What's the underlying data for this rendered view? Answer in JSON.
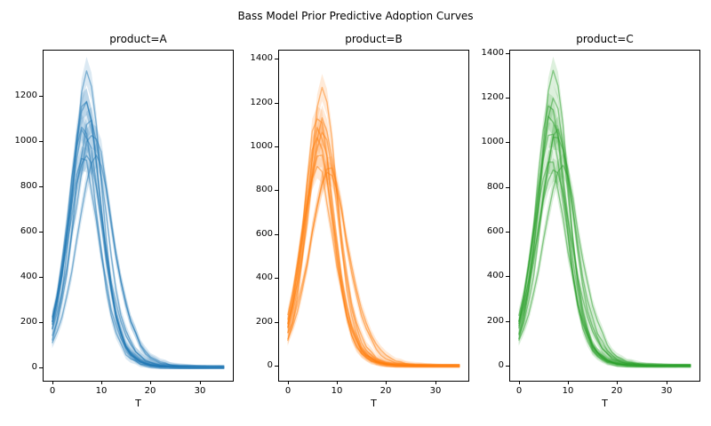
{
  "figure": {
    "title": "Bass Model Prior Predictive Adoption Curves",
    "background": "#ffffff"
  },
  "chart_data": {
    "type": "line",
    "title": "Bass Model Prior Predictive Adoption Curves",
    "description": "Three faceted panels of prior predictive Bass-diffusion adoption-rate curves (10 draws per product), each draw shown as a noisy mean line with a translucent uncertainty band.",
    "model": "bass_adoption: n(t) = m*(p+q)^2/p * exp(-(p+q)t) / (1 + (q/p)exp(-(p+q)t))^2",
    "n_draws_per_panel": 10,
    "grid": false,
    "legend": false,
    "x": {
      "label": "T",
      "ticks": [
        0,
        10,
        20,
        30
      ],
      "range": [
        -1.75,
        36.75
      ],
      "t_start": 0,
      "t_end": 35,
      "t_step": 1
    },
    "style": {
      "line_alpha": 0.5,
      "band_alpha": 0.16,
      "line_width": 1.4,
      "band_k0": 8,
      "band_k1": 1.5,
      "noise": 1.1
    },
    "panels": [
      {
        "title": "product=A",
        "color": "#1f77b4",
        "y_ticks": [
          0,
          200,
          400,
          600,
          800,
          1000,
          1200
        ],
        "y_range": [
          -60,
          1398
        ],
        "draws": [
          {
            "m": 10000,
            "p": 0.013,
            "q": 0.5
          },
          {
            "m": 9000,
            "p": 0.022,
            "q": 0.42
          },
          {
            "m": 8500,
            "p": 0.025,
            "q": 0.45
          },
          {
            "m": 9500,
            "p": 0.018,
            "q": 0.46
          },
          {
            "m": 8000,
            "p": 0.028,
            "q": 0.4
          },
          {
            "m": 9200,
            "p": 0.012,
            "q": 0.38
          },
          {
            "m": 10500,
            "p": 0.016,
            "q": 0.36
          },
          {
            "m": 9800,
            "p": 0.02,
            "q": 0.44
          },
          {
            "m": 8800,
            "p": 0.024,
            "q": 0.37
          },
          {
            "m": 9600,
            "p": 0.014,
            "q": 0.43
          }
        ]
      },
      {
        "title": "product=B",
        "color": "#ff7f0e",
        "y_ticks": [
          0,
          200,
          400,
          600,
          800,
          1000,
          1200,
          1400
        ],
        "y_range": [
          -68,
          1437
        ],
        "draws": [
          {
            "m": 9700,
            "p": 0.013,
            "q": 0.5
          },
          {
            "m": 8600,
            "p": 0.02,
            "q": 0.46
          },
          {
            "m": 8200,
            "p": 0.025,
            "q": 0.42
          },
          {
            "m": 9000,
            "p": 0.017,
            "q": 0.44
          },
          {
            "m": 7800,
            "p": 0.03,
            "q": 0.4
          },
          {
            "m": 8900,
            "p": 0.014,
            "q": 0.38
          },
          {
            "m": 9700,
            "p": 0.018,
            "q": 0.42
          },
          {
            "m": 8400,
            "p": 0.026,
            "q": 0.44
          },
          {
            "m": 9100,
            "p": 0.016,
            "q": 0.35
          },
          {
            "m": 8800,
            "p": 0.021,
            "q": 0.48
          }
        ]
      },
      {
        "title": "product=C",
        "color": "#2ca02c",
        "y_ticks": [
          0,
          200,
          400,
          600,
          800,
          1000,
          1200,
          1400
        ],
        "y_range": [
          -67,
          1410
        ],
        "draws": [
          {
            "m": 10100,
            "p": 0.013,
            "q": 0.5
          },
          {
            "m": 9200,
            "p": 0.019,
            "q": 0.45
          },
          {
            "m": 8700,
            "p": 0.024,
            "q": 0.43
          },
          {
            "m": 9600,
            "p": 0.015,
            "q": 0.47
          },
          {
            "m": 8100,
            "p": 0.028,
            "q": 0.39
          },
          {
            "m": 9000,
            "p": 0.013,
            "q": 0.37
          },
          {
            "m": 9900,
            "p": 0.017,
            "q": 0.38
          },
          {
            "m": 9300,
            "p": 0.021,
            "q": 0.46
          },
          {
            "m": 8500,
            "p": 0.023,
            "q": 0.36
          },
          {
            "m": 9500,
            "p": 0.014,
            "q": 0.42
          }
        ]
      }
    ]
  }
}
